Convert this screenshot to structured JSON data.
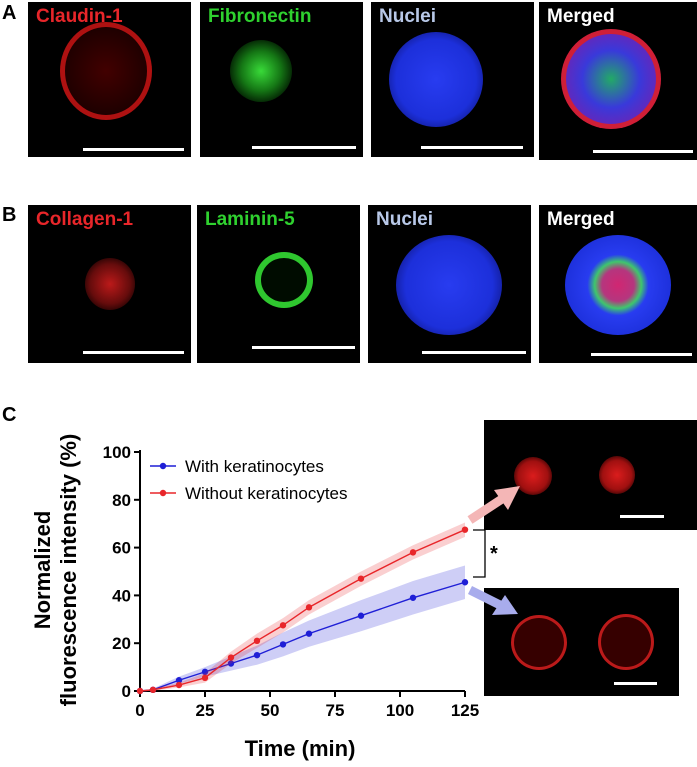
{
  "panels": {
    "a": {
      "letter": "A",
      "tiles": [
        {
          "label": "Claudin-1",
          "color": "#e8262a"
        },
        {
          "label": "Fibronectin",
          "color": "#2fd12f"
        },
        {
          "label": "Nuclei",
          "color": "#b8c8e8"
        },
        {
          "label": "Merged",
          "color": "#ffffff"
        }
      ]
    },
    "b": {
      "letter": "B",
      "tiles": [
        {
          "label": "Collagen-1",
          "color": "#e8262a"
        },
        {
          "label": "Laminin-5",
          "color": "#2fd12f"
        },
        {
          "label": "Nuclei",
          "color": "#b8c8e8"
        },
        {
          "label": "Merged",
          "color": "#ffffff"
        }
      ]
    },
    "c": {
      "letter": "C",
      "significance": "*"
    }
  },
  "chart_data": {
    "type": "line",
    "xlabel": "Time (min)",
    "ylabel": "Normalized fluorescence intensity (%)",
    "xlim": [
      0,
      125
    ],
    "ylim": [
      0,
      100
    ],
    "xticks": [
      0,
      25,
      50,
      75,
      100,
      125
    ],
    "yticks": [
      0,
      20,
      40,
      60,
      80,
      100
    ],
    "legend_position": "top-left",
    "series": [
      {
        "name": "With keratinocytes",
        "color": "#1f1fd6",
        "x": [
          0,
          5,
          15,
          25,
          35,
          45,
          55,
          65,
          85,
          105,
          125
        ],
        "y": [
          0,
          0.5,
          4.5,
          8,
          11.5,
          15,
          19.5,
          24,
          31.5,
          39,
          45.5
        ],
        "band": [
          0,
          0.5,
          1.5,
          2,
          3,
          4,
          5,
          5.5,
          6.5,
          7,
          7
        ]
      },
      {
        "name": "Without keratinocytes",
        "color": "#e8262a",
        "x": [
          0,
          5,
          15,
          25,
          35,
          45,
          55,
          65,
          85,
          105,
          125
        ],
        "y": [
          0,
          0.5,
          2.5,
          5.5,
          14,
          21,
          27.5,
          35,
          47,
          58,
          67.5
        ],
        "band": [
          0,
          0.5,
          1,
          2,
          2.5,
          3,
          3,
          3,
          3,
          3,
          3
        ]
      }
    ]
  }
}
